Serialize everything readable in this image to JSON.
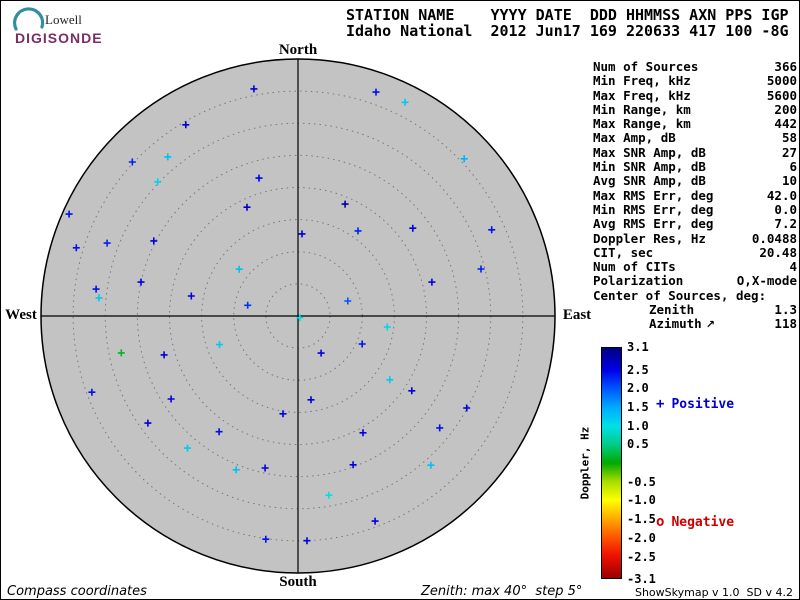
{
  "logo": {
    "name": "Lowell",
    "subtitle": "DIGISONDE"
  },
  "header": {
    "line1": "STATION NAME    YYYY DATE  DDD HHMMSS AXN PPS IGP",
    "line2": "Idaho National  2012 Jun17 169 220633 417 100 -8G"
  },
  "compass": {
    "north": "North",
    "south": "South",
    "east": "East",
    "west": "West"
  },
  "info_panel": {
    "rows": [
      {
        "label": "Num of Sources",
        "value": "366"
      },
      {
        "label": "Min Freq, kHz",
        "value": "5000"
      },
      {
        "label": "Max Freq, kHz",
        "value": "5600"
      },
      {
        "label": "Min Range, km",
        "value": "200"
      },
      {
        "label": "Max Range, km",
        "value": "442"
      },
      {
        "label": "Max Amp, dB",
        "value": "58"
      },
      {
        "label": "Max SNR Amp, dB",
        "value": "27"
      },
      {
        "label": "Min SNR Amp, dB",
        "value": "6"
      },
      {
        "label": "Avg SNR Amp, dB",
        "value": "10"
      },
      {
        "label": "Max RMS Err, deg",
        "value": "42.0"
      },
      {
        "label": "Min RMS Err, deg",
        "value": "0.0"
      },
      {
        "label": "Avg RMS Err, deg",
        "value": "7.2"
      },
      {
        "label": "Doppler Res, Hz",
        "value": "0.0488"
      },
      {
        "label": "CIT, sec",
        "value": "20.48"
      },
      {
        "label": "Num of CITs",
        "value": "4"
      },
      {
        "label": "Polarization",
        "value": "O,X-mode"
      },
      {
        "label": "Center of Sources, deg:",
        "value": ""
      },
      {
        "label": "Zenith",
        "value": "1.3",
        "indent": true
      },
      {
        "label": "Azimuth",
        "value": "118",
        "indent": true,
        "arrow": "↗"
      }
    ]
  },
  "colorbar": {
    "title": "Doppler, Hz",
    "max": 3.1,
    "min": -3.1,
    "tick_labels": [
      "3.1",
      "2.5",
      "2.0",
      "1.5",
      "1.0",
      "0.5",
      "-0.5",
      "-1.0",
      "-1.5",
      "-2.0",
      "-2.5",
      "-3.1"
    ],
    "tick_values": [
      3.1,
      2.5,
      2.0,
      1.5,
      1.0,
      0.5,
      -0.5,
      -1.0,
      -1.5,
      -2.0,
      -2.5,
      -3.1
    ],
    "stops": [
      {
        "v": 3.1,
        "c": "#000080"
      },
      {
        "v": 2.5,
        "c": "#0000e8"
      },
      {
        "v": 2.0,
        "c": "#0055ff"
      },
      {
        "v": 1.5,
        "c": "#00aaff"
      },
      {
        "v": 1.0,
        "c": "#00e0e8"
      },
      {
        "v": 0.5,
        "c": "#00cc88"
      },
      {
        "v": 0.0,
        "c": "#00aa00"
      },
      {
        "v": -0.5,
        "c": "#aadd00"
      },
      {
        "v": -1.0,
        "c": "#ffff00"
      },
      {
        "v": -1.5,
        "c": "#ffaa00"
      },
      {
        "v": -2.0,
        "c": "#ff5500"
      },
      {
        "v": -2.5,
        "c": "#ee1100"
      },
      {
        "v": -3.1,
        "c": "#990000"
      }
    ]
  },
  "legend": {
    "positive_symbol": "+",
    "positive_label": "Positive",
    "positive_color": "#0000cc",
    "negative_symbol": "o",
    "negative_label": "Negative",
    "negative_color": "#cc0000"
  },
  "footer": {
    "left": "Compass coordinates",
    "center": "Zenith: max 40°  step 5°",
    "right": "ShowSkymap v 1.0  SD v 4.2"
  },
  "colors": {
    "disc_fill": "#c3c3c3",
    "ring_stroke": "#787878",
    "axis_stroke": "#000000",
    "logo_arc": "#2d8fa0"
  },
  "chart_data": {
    "type": "scatter",
    "projection": "polar-skymap",
    "title": "Skymap of ionospheric sources, Idaho National, 2012 Jun17 220633",
    "zenith_max_deg": 40,
    "zenith_step_deg": 5,
    "doppler_range_hz": [
      -3.1,
      3.1
    ],
    "marker": "plus",
    "points": [
      {
        "az": 349.0,
        "zen": 36.0,
        "doppler": 2.6
      },
      {
        "az": 19.2,
        "zen": 36.9,
        "doppler": 2.4
      },
      {
        "az": 26.6,
        "zen": 37.2,
        "doppler": 1.2
      },
      {
        "az": 329.6,
        "zen": 34.5,
        "doppler": 2.6
      },
      {
        "az": 312.9,
        "zen": 35.2,
        "doppler": 2.3
      },
      {
        "az": 313.7,
        "zen": 30.2,
        "doppler": 1.1
      },
      {
        "az": 46.6,
        "zen": 35.6,
        "doppler": 1.4
      },
      {
        "az": 334.9,
        "zen": 18.7,
        "doppler": 2.7
      },
      {
        "az": 22.8,
        "zen": 18.9,
        "doppler": 2.9
      },
      {
        "az": 294.0,
        "zen": 39.0,
        "doppler": 2.4
      },
      {
        "az": 52.6,
        "zen": 22.5,
        "doppler": 2.6
      },
      {
        "az": 290.9,
        "zen": 31.8,
        "doppler": 2.3
      },
      {
        "az": 297.5,
        "zen": 25.3,
        "doppler": 2.6
      },
      {
        "az": 287.1,
        "zen": 36.1,
        "doppler": 2.4
      },
      {
        "az": 308.5,
        "zen": 11.7,
        "doppler": 1.3
      },
      {
        "az": 282.2,
        "zen": 25.0,
        "doppler": 2.5
      },
      {
        "az": 277.6,
        "zen": 31.7,
        "doppler": 2.4
      },
      {
        "az": 275.2,
        "zen": 31.1,
        "doppler": 1.2
      },
      {
        "az": 280.6,
        "zen": 16.9,
        "doppler": 2.6
      },
      {
        "az": 75.8,
        "zen": 21.5,
        "doppler": 2.5
      },
      {
        "az": 75.6,
        "zen": 29.4,
        "doppler": 2.3
      },
      {
        "az": 135.0,
        "zen": 0.4,
        "doppler": 1.0
      },
      {
        "az": 258.2,
        "zen": 28.1,
        "doppler": 0.15
      },
      {
        "az": 253.8,
        "zen": 21.7,
        "doppler": 2.6
      },
      {
        "az": 249.7,
        "zen": 34.2,
        "doppler": 2.4
      },
      {
        "az": 236.8,
        "zen": 23.6,
        "doppler": 2.5
      },
      {
        "az": 234.5,
        "zen": 28.7,
        "doppler": 2.6
      },
      {
        "az": 214.3,
        "zen": 21.8,
        "doppler": 2.4
      },
      {
        "az": 219.9,
        "zen": 26.8,
        "doppler": 1.2
      },
      {
        "az": 201.9,
        "zen": 25.8,
        "doppler": 1.3
      },
      {
        "az": 192.2,
        "zen": 24.2,
        "doppler": 2.5
      },
      {
        "az": 171.2,
        "zen": 13.2,
        "doppler": 2.6
      },
      {
        "az": 148.1,
        "zen": 6.8,
        "doppler": 2.5
      },
      {
        "az": 113.6,
        "zen": 10.9,
        "doppler": 2.4
      },
      {
        "az": 124.8,
        "zen": 17.4,
        "doppler": 1.2
      },
      {
        "az": 123.3,
        "zen": 21.2,
        "doppler": 2.6
      },
      {
        "az": 150.9,
        "zen": 20.8,
        "doppler": 2.5
      },
      {
        "az": 128.3,
        "zen": 28.1,
        "doppler": 2.4
      },
      {
        "az": 118.6,
        "zen": 29.9,
        "doppler": 2.6
      },
      {
        "az": 159.7,
        "zen": 24.7,
        "doppler": 2.5
      },
      {
        "az": 138.3,
        "zen": 31.1,
        "doppler": 1.3
      },
      {
        "az": 170.2,
        "zen": 28.3,
        "doppler": 1.0
      },
      {
        "az": 159.4,
        "zen": 34.1,
        "doppler": 2.5
      },
      {
        "az": 188.2,
        "zen": 35.1,
        "doppler": 2.4
      },
      {
        "az": 177.7,
        "zen": 35.0,
        "doppler": 2.6
      },
      {
        "az": 73.3,
        "zen": 8.1,
        "doppler": 2.0
      },
      {
        "az": 344.2,
        "zen": 22.3,
        "doppler": 2.5
      },
      {
        "az": 320.7,
        "zen": 32.0,
        "doppler": 1.3
      },
      {
        "az": 2.8,
        "zen": 12.8,
        "doppler": 2.6
      },
      {
        "az": 188.7,
        "zen": 15.4,
        "doppler": 2.5
      },
      {
        "az": 35.2,
        "zen": 16.2,
        "doppler": 2.3
      },
      {
        "az": 97.0,
        "zen": 14.0,
        "doppler": 1.1
      },
      {
        "az": 66.0,
        "zen": 33.0,
        "doppler": 2.4
      },
      {
        "az": 282.0,
        "zen": 8.0,
        "doppler": 2.2
      },
      {
        "az": 250.0,
        "zen": 13.0,
        "doppler": 1.2
      }
    ]
  }
}
